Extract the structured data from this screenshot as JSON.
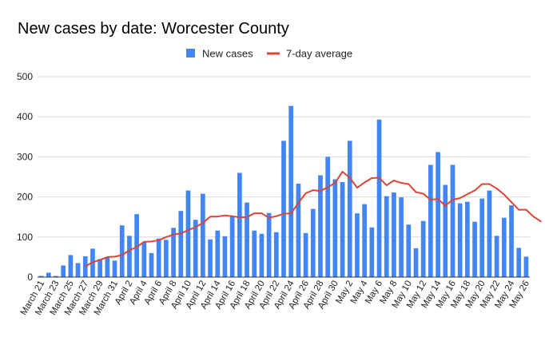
{
  "chart_data": {
    "type": "bar",
    "title": "New cases by date: Worcester County",
    "legend": {
      "placement": "top",
      "items": [
        {
          "name": "New cases",
          "color": "#4285f4",
          "shape": "square"
        },
        {
          "name": "7-day average",
          "color": "#db4437",
          "shape": "line"
        }
      ]
    },
    "ylim": [
      0,
      500
    ],
    "yticks": [
      0,
      100,
      200,
      300,
      400,
      500
    ],
    "grid": true,
    "tick_labels": [
      "March 21",
      "March 23",
      "March 25",
      "March 27",
      "March 29",
      "March 31",
      "April 2",
      "April 4",
      "April 6",
      "April 8",
      "April 10",
      "April 12",
      "April 14",
      "April 16",
      "April 18",
      "April 20",
      "April 22",
      "April 24",
      "April 26",
      "April 28",
      "April 30",
      "May 2",
      "May 4",
      "May 6",
      "May 8",
      "May 10",
      "May 12",
      "May 14",
      "May 16",
      "May 18",
      "May 20",
      "May 22",
      "May 24",
      "May 26"
    ],
    "series": [
      {
        "name": "New cases",
        "type": "bar",
        "color": "#4285f4",
        "values": [
          3,
          11,
          3,
          29,
          55,
          35,
          52,
          71,
          45,
          50,
          41,
          129,
          103,
          157,
          87,
          60,
          96,
          93,
          123,
          165,
          216,
          143,
          208,
          94,
          116,
          102,
          152,
          260,
          186,
          116,
          108,
          160,
          112,
          340,
          427,
          233,
          110,
          170,
          254,
          300,
          244,
          237,
          340,
          159,
          182,
          124,
          393,
          202,
          211,
          199,
          131,
          72,
          140,
          280,
          312,
          230,
          280,
          184,
          188,
          138,
          196,
          216,
          103,
          148,
          179,
          73,
          51
        ]
      },
      {
        "name": "7-day average",
        "type": "line",
        "color": "#db4437",
        "start_index": 6,
        "values": [
          27,
          37,
          43,
          50,
          51,
          55,
          67,
          75,
          88,
          89,
          92,
          100,
          106,
          109,
          117,
          125,
          135,
          151,
          151,
          154,
          152,
          149,
          150,
          159,
          159,
          148,
          152,
          158,
          159,
          185,
          209,
          217,
          215,
          224,
          235,
          263,
          248,
          223,
          236,
          247,
          248,
          229,
          241,
          235,
          232,
          212,
          208,
          193,
          195,
          178,
          193,
          197,
          207,
          216,
          232,
          232,
          221,
          206,
          187,
          168,
          168,
          151,
          139
        ]
      }
    ]
  }
}
